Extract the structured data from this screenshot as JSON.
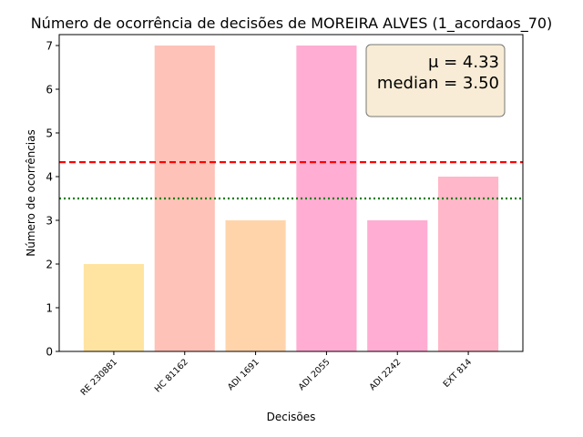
{
  "chart_data": {
    "type": "bar",
    "title": "Número de ocorrência de decisões de MOREIRA ALVES (1_acordaos_70)",
    "xlabel": "Decisões",
    "ylabel": "Número de ocorrências",
    "categories": [
      "RE 230881",
      "HC 81162",
      "ADI 1691",
      "ADI 2055",
      "ADI 2242",
      "EXT 814"
    ],
    "values": [
      2,
      7,
      3,
      7,
      3,
      4
    ],
    "bar_colors": [
      "#ffe4a1",
      "#ffc2b8",
      "#ffd4ab",
      "#ffadd2",
      "#ffadd2",
      "#ffb7c9"
    ],
    "ylim": [
      0,
      7.25
    ],
    "yticks": [
      0,
      1,
      2,
      3,
      4,
      5,
      6,
      7
    ],
    "grid": false,
    "reference_lines": [
      {
        "name": "mean",
        "value": 4.33,
        "color": "#ff0000",
        "style": "dashed"
      },
      {
        "name": "median",
        "value": 3.5,
        "color": "#008000",
        "style": "dotted"
      }
    ],
    "stats_box": {
      "mean_label": "μ = 4.33",
      "median_label": "median = 3.50",
      "placement": "top-right",
      "background": "#f8ecd6"
    }
  }
}
